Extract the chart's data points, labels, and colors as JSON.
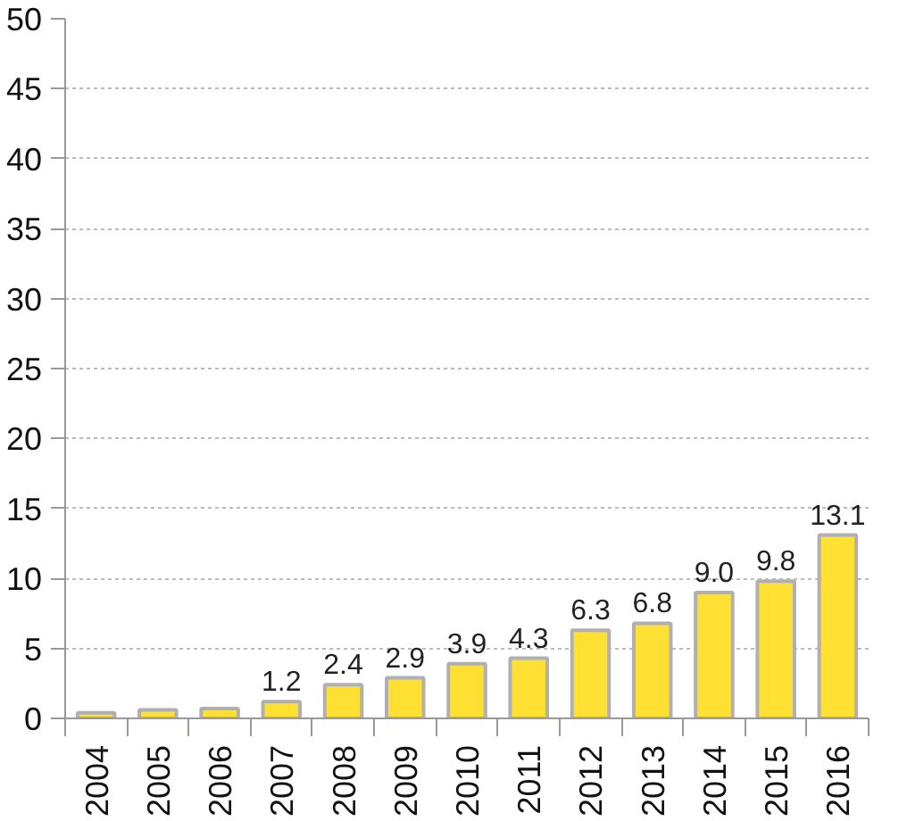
{
  "chart_data": {
    "type": "bar",
    "categories": [
      "2004",
      "2005",
      "2006",
      "2007",
      "2008",
      "2009",
      "2010",
      "2011",
      "2012",
      "2013",
      "2014",
      "2015",
      "2016"
    ],
    "values": [
      0.4,
      0.6,
      0.7,
      1.2,
      2.4,
      2.9,
      3.9,
      4.3,
      6.3,
      6.8,
      9.0,
      9.8,
      13.1
    ],
    "value_labels": [
      null,
      null,
      null,
      "1.2",
      "2.4",
      "2.9",
      "3.9",
      "4.3",
      "6.3",
      "6.8",
      "9.0",
      "9.8",
      "13.1"
    ],
    "color": "#ffe033",
    "ylim": [
      0,
      50
    ],
    "yticks": [
      0,
      5,
      10,
      15,
      20,
      25,
      30,
      35,
      40,
      45,
      50
    ],
    "grid": "y"
  }
}
